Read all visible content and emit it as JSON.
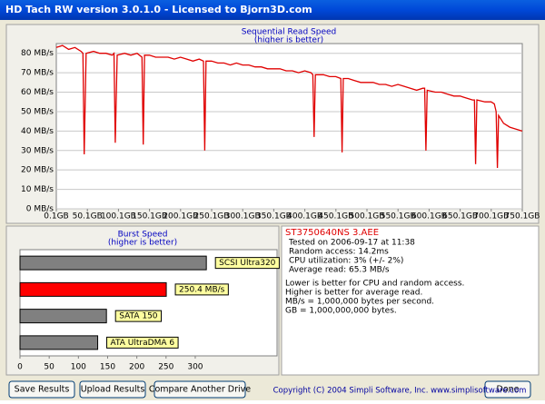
{
  "window": {
    "title": "HD Tach RW version 3.0.1.0 - Licensed to Bjorn3D.com"
  },
  "chart_data": [
    {
      "type": "line",
      "title": "Sequential Read Speed",
      "subtitle": "(higher is better)",
      "color": "#e00000",
      "grid": true,
      "x": [
        0.1,
        10,
        20,
        30,
        40,
        43,
        45,
        48,
        60,
        70,
        80,
        90,
        93,
        95,
        98,
        110,
        120,
        130,
        138,
        140,
        142,
        150,
        160,
        170,
        180,
        190,
        200,
        210,
        220,
        230,
        237,
        239,
        241,
        250,
        260,
        270,
        280,
        290,
        300,
        310,
        320,
        330,
        340,
        350,
        360,
        370,
        380,
        390,
        400,
        410,
        413,
        415,
        417,
        430,
        440,
        450,
        458,
        460,
        462,
        470,
        480,
        490,
        500,
        510,
        520,
        530,
        540,
        550,
        560,
        570,
        580,
        590,
        593,
        595,
        597,
        610,
        620,
        630,
        640,
        650,
        660,
        670,
        673,
        675,
        677,
        690,
        700,
        705,
        708,
        710,
        712,
        720,
        730,
        740,
        750.1
      ],
      "values": [
        83,
        84,
        82,
        83,
        81,
        80,
        28,
        80,
        81,
        80,
        80,
        79,
        80,
        34,
        79,
        80,
        79,
        80,
        78,
        33,
        79,
        79,
        78,
        78,
        78,
        77,
        78,
        77,
        76,
        77,
        76,
        30,
        76,
        76,
        75,
        75,
        74,
        75,
        74,
        74,
        73,
        73,
        72,
        72,
        72,
        71,
        71,
        70,
        71,
        70,
        69,
        37,
        69,
        69,
        68,
        68,
        67,
        29,
        67,
        67,
        66,
        65,
        65,
        65,
        64,
        64,
        63,
        64,
        63,
        62,
        61,
        62,
        62,
        30,
        61,
        60,
        60,
        59,
        58,
        58,
        57,
        56,
        56,
        23,
        56,
        55,
        55,
        54,
        50,
        21,
        48,
        44,
        42,
        41,
        40
      ],
      "xlim": [
        0.1,
        750.1
      ],
      "ylim": [
        0,
        85
      ],
      "xticks": [
        {
          "value": 0.1,
          "label": "0.1GB"
        },
        {
          "value": 50.1,
          "label": "50.1GB"
        },
        {
          "value": 100.1,
          "label": "100.1GB"
        },
        {
          "value": 150.1,
          "label": "150.1GB"
        },
        {
          "value": 200.1,
          "label": "200.1GB"
        },
        {
          "value": 250.1,
          "label": "250.1GB"
        },
        {
          "value": 300.1,
          "label": "300.1GB"
        },
        {
          "value": 350.1,
          "label": "350.1GB"
        },
        {
          "value": 400.1,
          "label": "400.1GB"
        },
        {
          "value": 450.1,
          "label": "450.1GB"
        },
        {
          "value": 500.1,
          "label": "500.1GB"
        },
        {
          "value": 550.1,
          "label": "550.1GB"
        },
        {
          "value": 600.1,
          "label": "600.1GB"
        },
        {
          "value": 650.1,
          "label": "650.1GB"
        },
        {
          "value": 700.1,
          "label": "700.1GB"
        },
        {
          "value": 750.1,
          "label": "750.1GB"
        }
      ],
      "yticks": [
        {
          "value": 0,
          "label": "0 MB/s"
        },
        {
          "value": 10,
          "label": "10 MB/s"
        },
        {
          "value": 20,
          "label": "20 MB/s"
        },
        {
          "value": 30,
          "label": "30 MB/s"
        },
        {
          "value": 40,
          "label": "40 MB/s"
        },
        {
          "value": 50,
          "label": "50 MB/s"
        },
        {
          "value": 60,
          "label": "60 MB/s"
        },
        {
          "value": 70,
          "label": "70 MB/s"
        },
        {
          "value": 80,
          "label": "80 MB/s"
        }
      ]
    },
    {
      "type": "barh",
      "title": "Burst Speed",
      "subtitle": "(higher is better)",
      "categories": [
        "SCSI Ultra320",
        null,
        "SATA 150",
        "ATA UltraDMA 6"
      ],
      "values": [
        319,
        250.4,
        148,
        133
      ],
      "value_labels": [
        null,
        "250.4 MB/s",
        null,
        null
      ],
      "colors": [
        "#808080",
        "#ff0000",
        "#808080",
        "#808080"
      ],
      "xlim": [
        0,
        440
      ],
      "xticks": [
        0,
        50,
        100,
        150,
        200,
        250,
        300
      ]
    }
  ],
  "info": {
    "drive": "ST3750640NS 3.AEE",
    "lines": [
      "Tested on 2006-09-17 at 11:38",
      "Random access: 14.2ms",
      "CPU utilization: 3% (+/- 2%)",
      "Average read: 65.3 MB/s"
    ],
    "notes": [
      "Lower is better for CPU and random access.",
      "Higher is better for average read.",
      "MB/s = 1,000,000 bytes per second.",
      "GB = 1,000,000,000 bytes."
    ]
  },
  "buttons": [
    "Save Results",
    "Upload Results",
    "Compare Another Drive",
    "Done"
  ],
  "footer": "Copyright (C) 2004 Simpli Software, Inc. www.simplisoftware.com"
}
